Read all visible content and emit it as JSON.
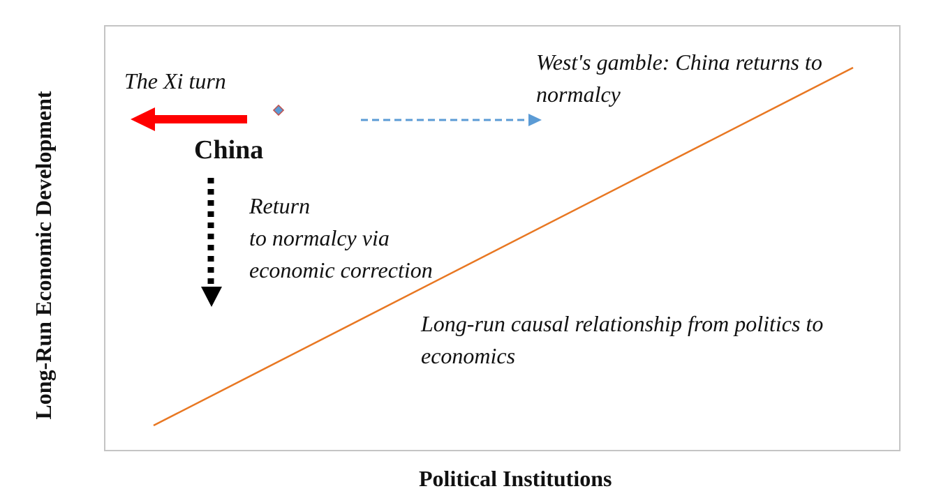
{
  "axes": {
    "x_label": "Political Institutions",
    "y_label": "Long-Run Economic Development"
  },
  "labels": {
    "xi_turn": "The Xi turn",
    "china": "China",
    "gamble_line1": "West's gamble: China returns to",
    "gamble_line2": "normalcy",
    "return_line1": "Return",
    "return_line2": "to normalcy via",
    "return_line3": "economic correction",
    "causal_line1": "Long-run causal relationship from politics to",
    "causal_line2": "economics"
  },
  "colors": {
    "causal_line": "#e87722",
    "xi_arrow": "#ff0000",
    "gamble_arrow": "#5b9bd5",
    "return_arrow": "#000000",
    "marker_fill": "#5b9bd5",
    "marker_stroke": "#c0504d"
  }
}
